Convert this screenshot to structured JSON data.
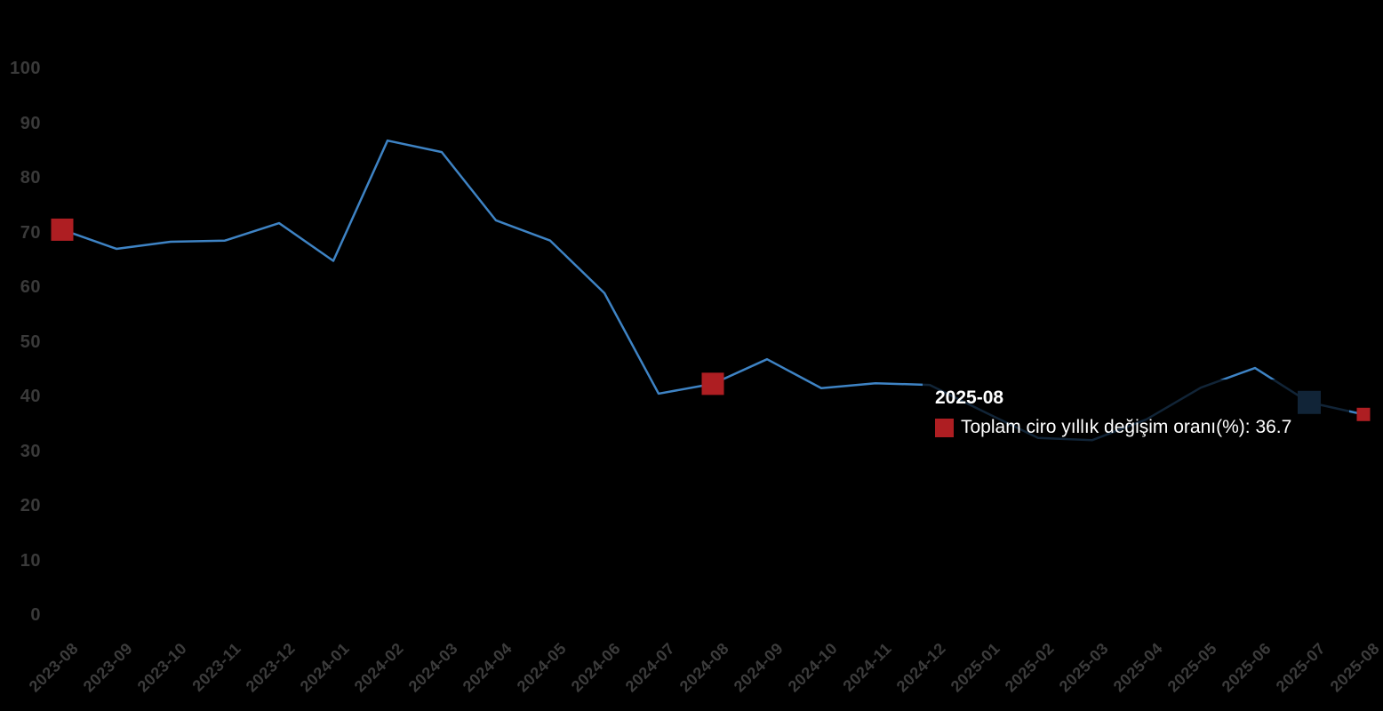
{
  "chart_data": {
    "type": "line",
    "categories": [
      "2023-08",
      "2023-09",
      "2023-10",
      "2023-11",
      "2023-12",
      "2024-01",
      "2024-02",
      "2024-03",
      "2024-04",
      "2024-05",
      "2024-06",
      "2024-07",
      "2024-08",
      "2024-09",
      "2024-10",
      "2024-11",
      "2024-12",
      "2025-01",
      "2025-02",
      "2025-03",
      "2025-04",
      "2025-05",
      "2025-06",
      "2025-07",
      "2025-08"
    ],
    "series": [
      {
        "name": "Toplam ciro yıllık değişim oranı(%)",
        "values": [
          70.5,
          67.0,
          68.3,
          68.5,
          71.7,
          64.8,
          86.8,
          84.7,
          72.2,
          68.5,
          58.9,
          40.5,
          42.3,
          46.8,
          41.5,
          42.4,
          42.1,
          37.2,
          32.4,
          32.0,
          35.8,
          41.6,
          45.2,
          38.9,
          36.7
        ]
      }
    ],
    "title": "",
    "xlabel": "",
    "ylabel": "",
    "ylim": [
      0,
      100
    ],
    "y_ticks": [
      0,
      10,
      20,
      30,
      40,
      50,
      60,
      70,
      80,
      90,
      100
    ],
    "grid": false,
    "legend_position": "none",
    "x_label_rotation_deg": 45,
    "markers": [
      {
        "category": "2023-08",
        "index": 0,
        "shape": "square",
        "size": 25,
        "color": "#ae1e22"
      },
      {
        "category": "2024-08",
        "index": 12,
        "shape": "square",
        "size": 25,
        "color": "#ae1e22"
      },
      {
        "category": "2025-07",
        "index": 23,
        "shape": "square",
        "size": 26,
        "color": "#3e83c4"
      },
      {
        "category": "2025-08",
        "index": 24,
        "shape": "square",
        "size": 15,
        "color": "#ae1e22"
      }
    ]
  },
  "tooltip": {
    "title": "2025-08",
    "series_label": "Toplam ciro yıllık değişim oranı(%)",
    "separator": ": ",
    "value": "36.7",
    "swatch_color": "#ae1e22"
  },
  "colors": {
    "background": "#000000",
    "line": "#3e83c4",
    "axis_label": "#3a3a3a",
    "marker_red": "#ae1e22",
    "tooltip_text": "#ffffff",
    "tooltip_background": "rgba(0,0,0,0.72)"
  }
}
